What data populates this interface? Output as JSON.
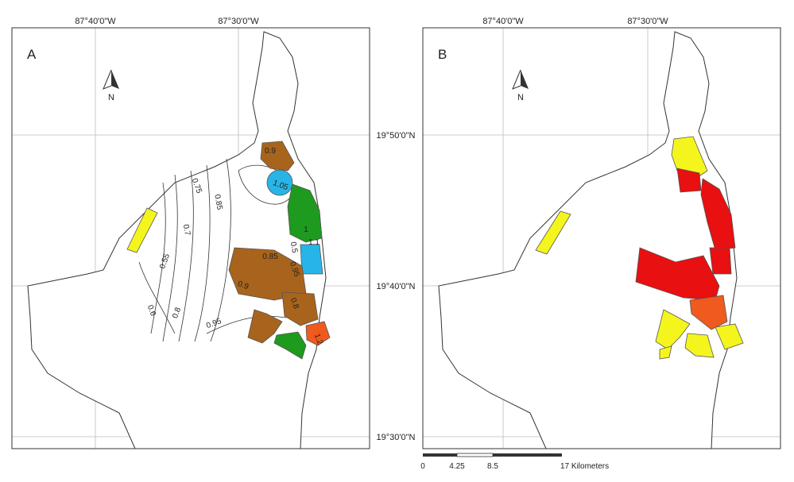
{
  "panels": [
    {
      "label": "A",
      "lon_labels": [
        "87°40'0\"W",
        "87°30'0\"W"
      ],
      "north": "N",
      "contour_labels": [
        "0.9",
        "1.05",
        "0.75",
        "0.85",
        "0.7",
        "0.55",
        "0.6",
        "0.8",
        "0.95",
        "0.85",
        "0.95",
        "0.9",
        "1",
        "1.1",
        "0.8",
        "1.2",
        "0.5"
      ]
    },
    {
      "label": "B",
      "lon_labels": [
        "87°40'0\"W",
        "87°30'0\"W"
      ],
      "north": "N"
    }
  ],
  "lat_labels": [
    "19°50'0\"N",
    "19°40'0\"N",
    "19°30'0\"N"
  ],
  "scale_bar": [
    "0",
    "4.25",
    "8.5",
    "17 Kilometers"
  ]
}
